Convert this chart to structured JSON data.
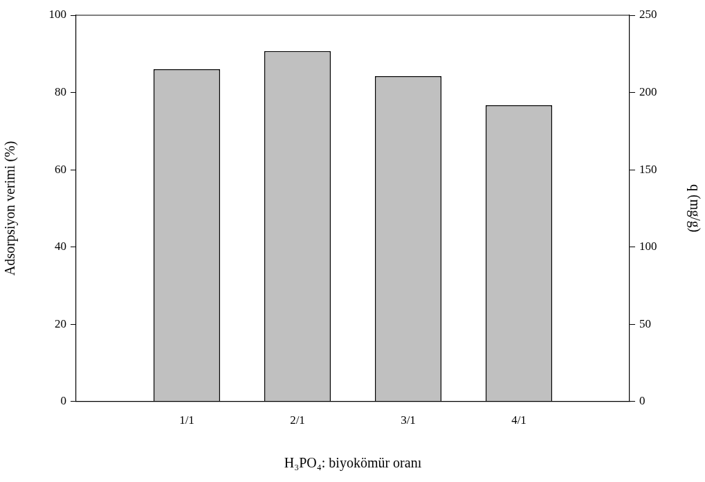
{
  "chart_data": {
    "type": "bar",
    "xlabel": "H₃PO₄: biyokömür oranı",
    "ylabel": "Adsorpsiyon verimi (%)",
    "y2label": "q (mg/g)",
    "categories": [
      null,
      "1/1",
      "2/1",
      "3/1",
      "4/1",
      null
    ],
    "series": [
      {
        "color": "#c0c0c0",
        "values": [
          null,
          86.0,
          90.7,
          84.2,
          76.7,
          null
        ]
      }
    ],
    "ylim": [
      0,
      100
    ],
    "yticks": [
      0,
      20,
      40,
      60,
      80,
      100
    ],
    "y2lim": [
      0,
      250
    ],
    "y2ticks": [
      0,
      50,
      100,
      150,
      200,
      250
    ],
    "grid": false,
    "legend": false
  }
}
